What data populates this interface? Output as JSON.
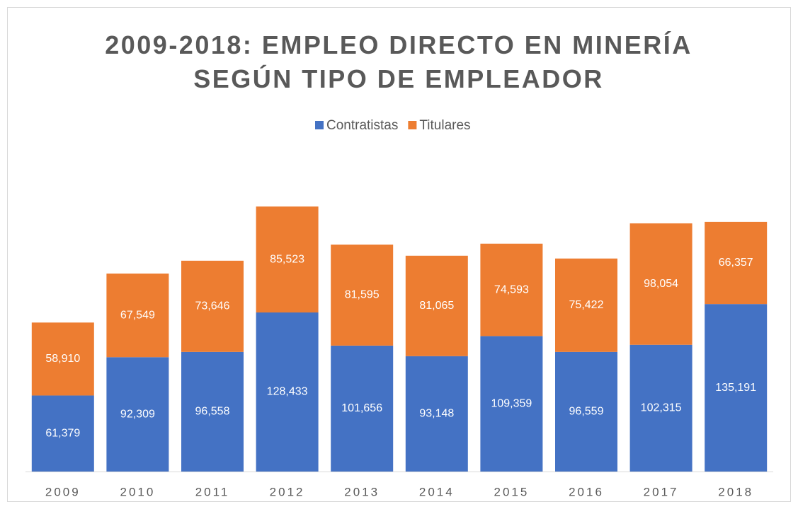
{
  "chart_data": {
    "type": "stacked_bar",
    "title": "2009-2018: EMPLEO DIRECTO EN MINERÍA SEGÚN TIPO DE EMPLEADOR",
    "categories": [
      "2009",
      "2010",
      "2011",
      "2012",
      "2013",
      "2014",
      "2015",
      "2016",
      "2017",
      "2018"
    ],
    "series": [
      {
        "name": "Contratistas",
        "color": "#4472c4",
        "values": [
          61379,
          92309,
          96558,
          128433,
          101656,
          93148,
          109359,
          96559,
          102315,
          135191
        ],
        "value_labels": [
          "61,379",
          "92,309",
          "96,558",
          "128,433",
          "101,656",
          "93,148",
          "109,359",
          "96,559",
          "102,315",
          "135,191"
        ]
      },
      {
        "name": "Titulares",
        "color": "#ed7d31",
        "values": [
          58910,
          67549,
          73646,
          85523,
          81595,
          81065,
          74593,
          75422,
          98054,
          66357
        ],
        "value_labels": [
          "58,910",
          "67,549",
          "73,646",
          "85,523",
          "81,595",
          "81,065",
          "74,593",
          "75,422",
          "98,054",
          "66,357"
        ]
      }
    ],
    "ylim": [
      0,
      250000
    ],
    "legend": "top"
  }
}
